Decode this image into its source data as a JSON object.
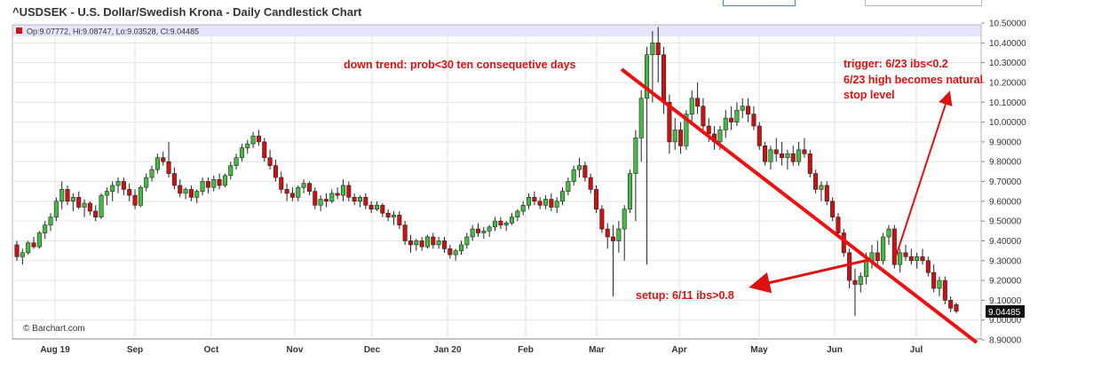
{
  "page": {
    "title": "^USDSEK - U.S. Dollar/Swedish Krona - Daily Candlestick Chart"
  },
  "ohlc_label": "Op:9.07772, Hi:9.08747, Lo:9.03528, Cl:9.04485",
  "credit": "© Barchart.com",
  "last_price": "9.04485",
  "colors": {
    "up": "#44bb44",
    "down": "#cc1111",
    "annotation": "#dd1111",
    "header_band": "#e4e6fb",
    "last_price_box": "#111111"
  },
  "annotations": {
    "downtrend": "down trend: prob<30 ten consequetive days",
    "trigger_1": "trigger: 6/23 ibs<0.2",
    "trigger_2": "6/23 high becomes natural",
    "trigger_3": "stop level",
    "setup": "setup: 6/11 ibs>0.8"
  },
  "chart_data": {
    "type": "candlestick",
    "title": "^USDSEK - U.S. Dollar/Swedish Krona - Daily Candlestick Chart",
    "x_ticks": [
      "Aug 19",
      "Sep",
      "Oct",
      "Nov",
      "Dec",
      "Jan 20",
      "Feb",
      "Mar",
      "Apr",
      "May",
      "Jun",
      "Jul"
    ],
    "y_ticks": [
      "10.50000",
      "10.40000",
      "10.30000",
      "10.20000",
      "10.10000",
      "10.00000",
      "9.90000",
      "9.80000",
      "9.70000",
      "9.60000",
      "9.50000",
      "9.40000",
      "9.30000",
      "9.20000",
      "9.10000",
      "9.00000",
      "8.90000"
    ],
    "ylim": [
      8.9,
      10.5
    ],
    "grid": true,
    "series": [
      {
        "x": [
          "Aug 19",
          "Sep",
          "Oct",
          "Nov",
          "Dec",
          "Jan 20",
          "Feb",
          "Mar",
          "Apr",
          "May",
          "Jun",
          "Jul"
        ],
        "close_approx": [
          9.6,
          9.72,
          9.95,
          9.66,
          9.52,
          9.35,
          9.63,
          9.5,
          10.0,
          9.95,
          9.2,
          9.2
        ]
      }
    ],
    "candles": [
      [
        9.38,
        9.4,
        9.3,
        9.32
      ],
      [
        9.32,
        9.36,
        9.28,
        9.34
      ],
      [
        9.34,
        9.4,
        9.33,
        9.39
      ],
      [
        9.39,
        9.42,
        9.36,
        9.37
      ],
      [
        9.37,
        9.45,
        9.36,
        9.44
      ],
      [
        9.44,
        9.5,
        9.41,
        9.48
      ],
      [
        9.48,
        9.54,
        9.45,
        9.52
      ],
      [
        9.52,
        9.62,
        9.5,
        9.6
      ],
      [
        9.6,
        9.7,
        9.56,
        9.66
      ],
      [
        9.66,
        9.68,
        9.58,
        9.6
      ],
      [
        9.6,
        9.64,
        9.55,
        9.62
      ],
      [
        9.62,
        9.65,
        9.56,
        9.57
      ],
      [
        9.57,
        9.61,
        9.52,
        9.59
      ],
      [
        9.59,
        9.6,
        9.53,
        9.55
      ],
      [
        9.55,
        9.58,
        9.5,
        9.52
      ],
      [
        9.52,
        9.64,
        9.51,
        9.63
      ],
      [
        9.63,
        9.67,
        9.58,
        9.65
      ],
      [
        9.65,
        9.7,
        9.6,
        9.68
      ],
      [
        9.68,
        9.72,
        9.64,
        9.7
      ],
      [
        9.7,
        9.72,
        9.63,
        9.66
      ],
      [
        9.66,
        9.69,
        9.6,
        9.63
      ],
      [
        9.63,
        9.66,
        9.56,
        9.58
      ],
      [
        9.58,
        9.68,
        9.57,
        9.67
      ],
      [
        9.67,
        9.74,
        9.65,
        9.72
      ],
      [
        9.72,
        9.78,
        9.7,
        9.76
      ],
      [
        9.76,
        9.84,
        9.74,
        9.82
      ],
      [
        9.82,
        9.85,
        9.78,
        9.8
      ],
      [
        9.8,
        9.9,
        9.72,
        9.74
      ],
      [
        9.74,
        9.77,
        9.66,
        9.68
      ],
      [
        9.68,
        9.71,
        9.62,
        9.64
      ],
      [
        9.64,
        9.67,
        9.61,
        9.66
      ],
      [
        9.66,
        9.68,
        9.6,
        9.62
      ],
      [
        9.62,
        9.66,
        9.59,
        9.65
      ],
      [
        9.65,
        9.72,
        9.63,
        9.7
      ],
      [
        9.7,
        9.72,
        9.64,
        9.67
      ],
      [
        9.67,
        9.73,
        9.65,
        9.71
      ],
      [
        9.71,
        9.74,
        9.66,
        9.68
      ],
      [
        9.68,
        9.74,
        9.67,
        9.73
      ],
      [
        9.73,
        9.8,
        9.71,
        9.78
      ],
      [
        9.78,
        9.84,
        9.76,
        9.82
      ],
      [
        9.82,
        9.89,
        9.8,
        9.87
      ],
      [
        9.87,
        9.91,
        9.84,
        9.89
      ],
      [
        9.89,
        9.95,
        9.87,
        9.93
      ],
      [
        9.93,
        9.96,
        9.88,
        9.9
      ],
      [
        9.9,
        9.92,
        9.8,
        9.82
      ],
      [
        9.82,
        9.86,
        9.76,
        9.78
      ],
      [
        9.78,
        9.81,
        9.7,
        9.72
      ],
      [
        9.72,
        9.75,
        9.64,
        9.66
      ],
      [
        9.66,
        9.69,
        9.6,
        9.64
      ],
      [
        9.64,
        9.67,
        9.6,
        9.62
      ],
      [
        9.62,
        9.68,
        9.6,
        9.67
      ],
      [
        9.67,
        9.71,
        9.64,
        9.69
      ],
      [
        9.69,
        9.7,
        9.63,
        9.65
      ],
      [
        9.65,
        9.67,
        9.56,
        9.58
      ],
      [
        9.58,
        9.63,
        9.55,
        9.61
      ],
      [
        9.61,
        9.64,
        9.57,
        9.6
      ],
      [
        9.6,
        9.66,
        9.59,
        9.64
      ],
      [
        9.64,
        9.67,
        9.61,
        9.63
      ],
      [
        9.63,
        9.71,
        9.6,
        9.68
      ],
      [
        9.68,
        9.7,
        9.6,
        9.62
      ],
      [
        9.62,
        9.64,
        9.58,
        9.6
      ],
      [
        9.6,
        9.63,
        9.57,
        9.62
      ],
      [
        9.62,
        9.64,
        9.56,
        9.58
      ],
      [
        9.58,
        9.6,
        9.54,
        9.56
      ],
      [
        9.56,
        9.6,
        9.55,
        9.58
      ],
      [
        9.58,
        9.59,
        9.52,
        9.54
      ],
      [
        9.54,
        9.56,
        9.5,
        9.52
      ],
      [
        9.52,
        9.55,
        9.48,
        9.53
      ],
      [
        9.53,
        9.55,
        9.46,
        9.48
      ],
      [
        9.48,
        9.5,
        9.38,
        9.4
      ],
      [
        9.4,
        9.43,
        9.34,
        9.38
      ],
      [
        9.38,
        9.41,
        9.35,
        9.4
      ],
      [
        9.4,
        9.42,
        9.35,
        9.37
      ],
      [
        9.37,
        9.43,
        9.36,
        9.42
      ],
      [
        9.42,
        9.44,
        9.36,
        9.38
      ],
      [
        9.38,
        9.42,
        9.36,
        9.4
      ],
      [
        9.4,
        9.42,
        9.34,
        9.36
      ],
      [
        9.36,
        9.38,
        9.31,
        9.33
      ],
      [
        9.33,
        9.36,
        9.3,
        9.35
      ],
      [
        9.35,
        9.4,
        9.33,
        9.38
      ],
      [
        9.38,
        9.44,
        9.36,
        9.42
      ],
      [
        9.42,
        9.48,
        9.4,
        9.46
      ],
      [
        9.46,
        9.49,
        9.42,
        9.44
      ],
      [
        9.44,
        9.47,
        9.41,
        9.45
      ],
      [
        9.45,
        9.48,
        9.42,
        9.47
      ],
      [
        9.47,
        9.52,
        9.45,
        9.5
      ],
      [
        9.5,
        9.52,
        9.46,
        9.48
      ],
      [
        9.48,
        9.5,
        9.45,
        9.49
      ],
      [
        9.49,
        9.54,
        9.48,
        9.52
      ],
      [
        9.52,
        9.56,
        9.5,
        9.55
      ],
      [
        9.55,
        9.6,
        9.53,
        9.58
      ],
      [
        9.58,
        9.64,
        9.56,
        9.62
      ],
      [
        9.62,
        9.65,
        9.58,
        9.6
      ],
      [
        9.6,
        9.62,
        9.56,
        9.58
      ],
      [
        9.58,
        9.63,
        9.56,
        9.61
      ],
      [
        9.61,
        9.64,
        9.55,
        9.57
      ],
      [
        9.57,
        9.62,
        9.54,
        9.6
      ],
      [
        9.6,
        9.67,
        9.58,
        9.65
      ],
      [
        9.65,
        9.72,
        9.63,
        9.7
      ],
      [
        9.7,
        9.78,
        9.68,
        9.76
      ],
      [
        9.76,
        9.82,
        9.72,
        9.78
      ],
      [
        9.78,
        9.8,
        9.7,
        9.72
      ],
      [
        9.72,
        9.74,
        9.64,
        9.66
      ],
      [
        9.66,
        9.68,
        9.54,
        9.56
      ],
      [
        9.56,
        9.58,
        9.44,
        9.46
      ],
      [
        9.46,
        9.49,
        9.36,
        9.42
      ],
      [
        9.42,
        9.48,
        9.12,
        9.4
      ],
      [
        9.4,
        9.5,
        9.34,
        9.46
      ],
      [
        9.46,
        9.58,
        9.3,
        9.56
      ],
      [
        9.56,
        9.76,
        9.54,
        9.74
      ],
      [
        9.74,
        9.96,
        9.5,
        9.92
      ],
      [
        9.92,
        10.16,
        9.8,
        10.12
      ],
      [
        10.12,
        10.38,
        9.28,
        10.34
      ],
      [
        10.34,
        10.46,
        10.1,
        10.4
      ],
      [
        10.4,
        10.48,
        10.2,
        10.34
      ],
      [
        10.34,
        10.38,
        10.04,
        10.1
      ],
      [
        10.1,
        10.14,
        9.84,
        9.9
      ],
      [
        9.9,
        10.02,
        9.86,
        9.96
      ],
      [
        9.96,
        10.0,
        9.84,
        9.88
      ],
      [
        9.88,
        10.06,
        9.86,
        10.04
      ],
      [
        10.04,
        10.16,
        10.0,
        10.12
      ],
      [
        10.12,
        10.2,
        10.04,
        10.08
      ],
      [
        10.08,
        10.12,
        9.94,
        9.98
      ],
      [
        9.98,
        10.02,
        9.9,
        9.94
      ],
      [
        9.94,
        9.98,
        9.86,
        9.9
      ],
      [
        9.9,
        9.98,
        9.86,
        9.96
      ],
      [
        9.96,
        10.06,
        9.92,
        10.02
      ],
      [
        10.02,
        10.08,
        9.96,
        10.0
      ],
      [
        10.0,
        10.1,
        9.98,
        10.06
      ],
      [
        10.06,
        10.12,
        10.02,
        10.08
      ],
      [
        10.08,
        10.12,
        10.0,
        10.04
      ],
      [
        10.04,
        10.08,
        9.96,
        9.98
      ],
      [
        9.98,
        10.0,
        9.86,
        9.88
      ],
      [
        9.88,
        9.9,
        9.78,
        9.8
      ],
      [
        9.8,
        9.88,
        9.76,
        9.86
      ],
      [
        9.86,
        9.92,
        9.8,
        9.84
      ],
      [
        9.84,
        9.9,
        9.78,
        9.82
      ],
      [
        9.82,
        9.86,
        9.76,
        9.84
      ],
      [
        9.84,
        9.88,
        9.78,
        9.8
      ],
      [
        9.8,
        9.9,
        9.78,
        9.86
      ],
      [
        9.86,
        9.92,
        9.82,
        9.84
      ],
      [
        9.84,
        9.86,
        9.72,
        9.74
      ],
      [
        9.74,
        9.76,
        9.64,
        9.66
      ],
      [
        9.66,
        9.7,
        9.6,
        9.68
      ],
      [
        9.68,
        9.7,
        9.58,
        9.6
      ],
      [
        9.6,
        9.62,
        9.5,
        9.52
      ],
      [
        9.52,
        9.54,
        9.42,
        9.44
      ],
      [
        9.44,
        9.46,
        9.32,
        9.34
      ],
      [
        9.34,
        9.36,
        9.16,
        9.2
      ],
      [
        9.2,
        9.26,
        9.02,
        9.18
      ],
      [
        9.18,
        9.24,
        9.14,
        9.22
      ],
      [
        9.22,
        9.34,
        9.18,
        9.3
      ],
      [
        9.3,
        9.38,
        9.26,
        9.34
      ],
      [
        9.34,
        9.4,
        9.28,
        9.3
      ],
      [
        9.3,
        9.44,
        9.28,
        9.42
      ],
      [
        9.42,
        9.48,
        9.38,
        9.46
      ],
      [
        9.46,
        9.48,
        9.26,
        9.28
      ],
      [
        9.28,
        9.36,
        9.24,
        9.34
      ],
      [
        9.34,
        9.38,
        9.3,
        9.32
      ],
      [
        9.32,
        9.36,
        9.28,
        9.3
      ],
      [
        9.3,
        9.34,
        9.26,
        9.32
      ],
      [
        9.32,
        9.36,
        9.28,
        9.3
      ],
      [
        9.3,
        9.32,
        9.22,
        9.24
      ],
      [
        9.24,
        9.28,
        9.14,
        9.16
      ],
      [
        9.16,
        9.22,
        9.12,
        9.2
      ],
      [
        9.2,
        9.22,
        9.08,
        9.1
      ],
      [
        9.1,
        9.12,
        9.04,
        9.06
      ],
      [
        9.07772,
        9.08747,
        9.03528,
        9.04485
      ]
    ]
  }
}
